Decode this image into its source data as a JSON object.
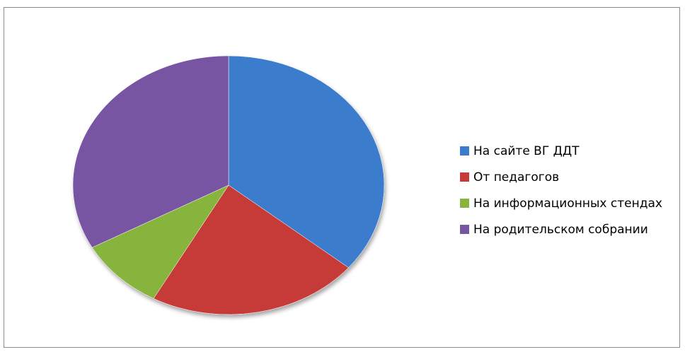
{
  "chart_data": {
    "type": "pie",
    "categories": [
      "На сайте ВГ ДДТ",
      "От педагогов",
      "На информационных стендах",
      "На родительском собрании"
    ],
    "values": [
      36,
      22,
      9,
      33
    ],
    "colors": [
      "#3b7ccc",
      "#c63a37",
      "#87b43c",
      "#7755a3"
    ],
    "legend_position": "right"
  }
}
